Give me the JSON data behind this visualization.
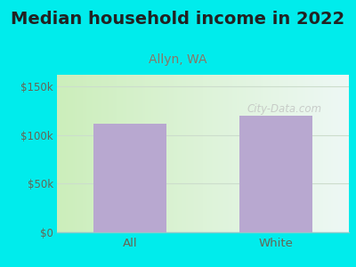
{
  "title": "Median household income in 2022",
  "subtitle": "Allyn, WA",
  "categories": [
    "All",
    "White"
  ],
  "values": [
    112000,
    120000
  ],
  "bar_color": "#b8a8d0",
  "yticks": [
    0,
    50000,
    100000,
    150000
  ],
  "ytick_labels": [
    "$0",
    "$50k",
    "$100k",
    "$150k"
  ],
  "ylim": [
    0,
    162000
  ],
  "background_outer": "#00ecec",
  "bg_gradient_left": "#cceebb",
  "bg_gradient_right": "#ddf0ee",
  "title_fontsize": 14,
  "title_color": "#222222",
  "subtitle_fontsize": 10,
  "subtitle_color": "#887766",
  "tick_label_color": "#666655",
  "watermark": "City-Data.com",
  "watermark_color": "#bbbbbb",
  "grid_color": "#ccddcc",
  "bottom_line_color": "#88cccc"
}
